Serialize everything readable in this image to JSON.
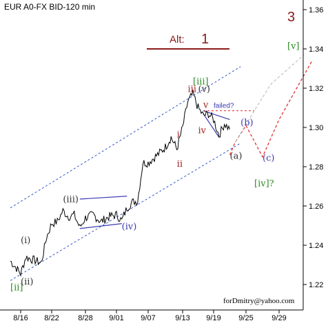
{
  "chart_data": {
    "type": "line",
    "title": "EUR A0-FX BID-120 min",
    "xlabel": "",
    "ylabel": "",
    "x_ticks": [
      "8/16",
      "8/22",
      "8/28",
      "9/01",
      "9/07",
      "9/13",
      "9/19",
      "9/25",
      "9/29"
    ],
    "y_ticks": [
      "1.22",
      "1.24",
      "1.26",
      "1.28",
      "1.30",
      "1.32",
      "1.34",
      "1.36"
    ],
    "ylim": [
      1.208,
      1.365
    ],
    "grid": false,
    "price_series": [
      {
        "date": "8/14",
        "price": 1.232
      },
      {
        "date": "8/15",
        "price": 1.229
      },
      {
        "date": "8/16",
        "price": 1.2255
      },
      {
        "date": "8/17",
        "price": 1.234
      },
      {
        "date": "8/18",
        "price": 1.233
      },
      {
        "date": "8/20",
        "price": 1.231
      },
      {
        "date": "8/21",
        "price": 1.244
      },
      {
        "date": "8/22",
        "price": 1.251
      },
      {
        "date": "8/23",
        "price": 1.252
      },
      {
        "date": "8/24",
        "price": 1.2575
      },
      {
        "date": "8/25",
        "price": 1.2545
      },
      {
        "date": "8/26",
        "price": 1.2555
      },
      {
        "date": "8/27",
        "price": 1.249
      },
      {
        "date": "8/28",
        "price": 1.254
      },
      {
        "date": "8/29",
        "price": 1.2555
      },
      {
        "date": "8/30",
        "price": 1.252
      },
      {
        "date": "8/31",
        "price": 1.2545
      },
      {
        "date": "9/01",
        "price": 1.2555
      },
      {
        "date": "9/02",
        "price": 1.2525
      },
      {
        "date": "9/03",
        "price": 1.259
      },
      {
        "date": "9/04",
        "price": 1.262
      },
      {
        "date": "9/05",
        "price": 1.2625
      },
      {
        "date": "9/06",
        "price": 1.282
      },
      {
        "date": "9/07",
        "price": 1.282
      },
      {
        "date": "9/09",
        "price": 1.287
      },
      {
        "date": "9/10",
        "price": 1.29
      },
      {
        "date": "9/11",
        "price": 1.295
      },
      {
        "date": "9/12",
        "price": 1.289
      },
      {
        "date": "9/13",
        "price": 1.3
      },
      {
        "date": "9/14",
        "price": 1.313
      },
      {
        "date": "9/15",
        "price": 1.317
      },
      {
        "date": "9/16",
        "price": 1.31
      },
      {
        "date": "9/17",
        "price": 1.306
      },
      {
        "date": "9/18",
        "price": 1.307
      },
      {
        "date": "9/19",
        "price": 1.304
      },
      {
        "date": "9/20",
        "price": 1.296
      },
      {
        "date": "9/21",
        "price": 1.302
      },
      {
        "date": "9/22",
        "price": 1.299
      }
    ],
    "channels": [
      {
        "label": "upper channel",
        "from": {
          "date": "8/14",
          "price": 1.259
        },
        "to": {
          "date": "9/24",
          "price": 1.331
        }
      },
      {
        "label": "lower channel",
        "from": {
          "date": "8/14",
          "price": 1.222
        },
        "to": {
          "date": "9/24",
          "price": 1.292
        }
      }
    ],
    "triangles": [
      {
        "label": "(iv) triangle",
        "upper": [
          {
            "date": "8/27",
            "price": 1.2635
          },
          {
            "date": "9/03",
            "price": 1.265
          }
        ],
        "lower": [
          {
            "date": "8/27",
            "price": 1.2485
          },
          {
            "date": "9/02",
            "price": 1.251
          }
        ]
      },
      {
        "label": "v triangle",
        "upper": [
          {
            "date": "9/17",
            "price": 1.3085
          },
          {
            "date": "9/22",
            "price": 1.304
          }
        ],
        "lower": [
          {
            "date": "9/17",
            "price": 1.307
          },
          {
            "date": "9/20",
            "price": 1.295
          }
        ]
      }
    ],
    "failed_line": {
      "from": {
        "date": "9/17",
        "price": 1.3085
      },
      "to": {
        "date": "9/26",
        "price": 1.3085
      }
    },
    "projections": [
      {
        "label": "abc forecast",
        "color": "#e02020",
        "points": [
          {
            "date": "9/22",
            "price": 1.286
          },
          {
            "date": "9/23",
            "price": 1.2925
          },
          {
            "date": "9/25",
            "price": 1.301
          },
          {
            "date": "9/27",
            "price": 1.285
          },
          {
            "date": "9/29",
            "price": 1.304
          },
          {
            "date": "10/02",
            "price": 1.334
          }
        ]
      },
      {
        "label": "failed alt forecast",
        "color": "#c0c0c0",
        "points": [
          {
            "date": "9/23",
            "price": 1.2925
          },
          {
            "date": "9/26",
            "price": 1.3085
          },
          {
            "date": "9/28",
            "price": 1.322
          },
          {
            "date": "10/01",
            "price": 1.337
          }
        ]
      }
    ],
    "annotations": [
      {
        "text": "[ii]",
        "date": "8/14",
        "price": 1.217,
        "color": "#2e8b22"
      },
      {
        "text": "(ii)",
        "date": "8/16",
        "price": 1.22,
        "color": "#333333"
      },
      {
        "text": "(i)",
        "date": "8/16",
        "price": 1.241,
        "color": "#333333"
      },
      {
        "text": "(iii)",
        "date": "8/24",
        "price": 1.262,
        "color": "#333333"
      },
      {
        "text": "(iv)",
        "date": "9/02",
        "price": 1.248,
        "color": "#3a3ab0"
      },
      {
        "text": "i",
        "date": "9/12",
        "price": 1.295,
        "color": "#a02020"
      },
      {
        "text": "ii",
        "date": "9/12",
        "price": 1.28,
        "color": "#a02020"
      },
      {
        "text": "[iii]",
        "date": "9/15",
        "price": 1.322,
        "color": "#2e8b22"
      },
      {
        "text": "iii",
        "date": "9/14",
        "price": 1.318,
        "color": "#a02020"
      },
      {
        "text": "(v)",
        "date": "9/16",
        "price": 1.318,
        "color": "#333333"
      },
      {
        "text": "v",
        "date": "9/17",
        "price": 1.31,
        "color": "#a02020"
      },
      {
        "text": "failed?",
        "date": "9/19",
        "price": 1.31,
        "color": "#3a3ab0"
      },
      {
        "text": "iv",
        "date": "9/16",
        "price": 1.297,
        "color": "#a02020"
      },
      {
        "text": "(b)",
        "date": "9/24",
        "price": 1.301,
        "color": "#3a3ab0"
      },
      {
        "text": "(a)",
        "date": "9/22",
        "price": 1.284,
        "color": "#333333"
      },
      {
        "text": "(c)",
        "date": "9/27",
        "price": 1.283,
        "color": "#3a3ab0"
      },
      {
        "text": "[iv]?",
        "date": "9/26",
        "price": 1.27,
        "color": "#2e8b22"
      },
      {
        "text": "[v]",
        "date": "9/30",
        "price": 1.34,
        "color": "#2e8b22"
      },
      {
        "text": "3",
        "date": "9/30",
        "price": 1.354,
        "color": "#8b1a1a"
      }
    ],
    "alt_label": {
      "prefix": "Alt:",
      "number": "1",
      "color": "#8b1a1a"
    }
  },
  "credit": "forDmitry@yahoo.com",
  "colors": {
    "price": "#000000",
    "channel": "#3355cc",
    "triangle": "#3a3ab0",
    "failed": "#e02020"
  }
}
